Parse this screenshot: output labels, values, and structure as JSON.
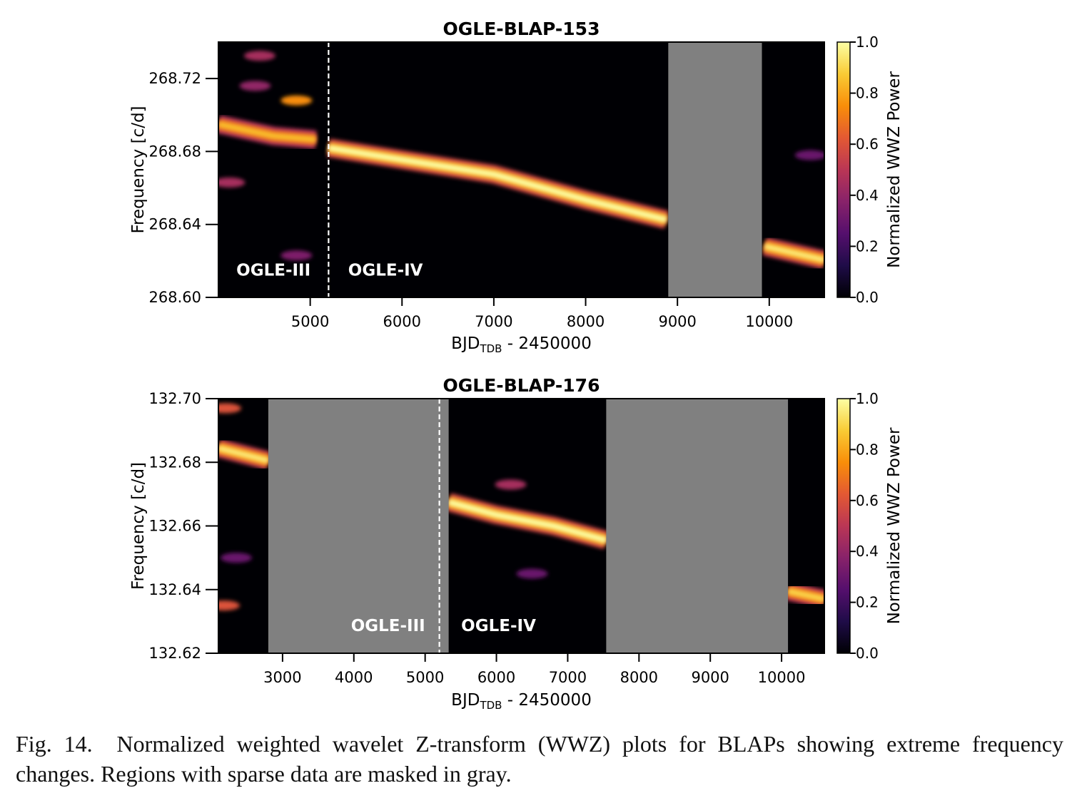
{
  "colors": {
    "gap": "#808080",
    "background": "#ffffff",
    "text": "#000000",
    "marker": "#ffffff"
  },
  "colormap": {
    "name": "inferno",
    "stops": [
      "#000004",
      "#1f0c48",
      "#550f6d",
      "#88226a",
      "#ba3655",
      "#e35933",
      "#f98e09",
      "#f9cb35",
      "#fcffa4"
    ]
  },
  "chart_data": [
    {
      "type": "heatmap",
      "title": "OGLE-BLAP-153",
      "xlabel_main": "BJD",
      "xlabel_sub": "TDB",
      "xlabel_tail": " - 2450000",
      "ylabel": "Frequency [c/d]",
      "xlim": [
        4000,
        10600
      ],
      "ylim": [
        268.6,
        268.74
      ],
      "xticks": [
        5000,
        6000,
        7000,
        8000,
        9000,
        10000
      ],
      "xtick_labels": [
        "5000",
        "6000",
        "7000",
        "8000",
        "9000",
        "10000"
      ],
      "yticks": [
        268.6,
        268.64,
        268.68,
        268.72
      ],
      "ytick_labels": [
        "268.60",
        "268.64",
        "268.68",
        "268.72"
      ],
      "colorbar": {
        "label": "Normalized WWZ Power",
        "range": [
          0.0,
          1.0
        ],
        "ticks": [
          0.0,
          0.2,
          0.4,
          0.6,
          0.8,
          1.0
        ],
        "tick_labels": [
          "0.0",
          "0.2",
          "0.4",
          "0.6",
          "0.8",
          "1.0"
        ]
      },
      "masked_regions": [
        [
          8900,
          9920
        ]
      ],
      "divider_x": 5200,
      "region_labels": [
        {
          "text": "OGLE-III",
          "x": 4600,
          "y": 268.612
        },
        {
          "text": "OGLE-IV",
          "x": 5820,
          "y": 268.612
        }
      ],
      "ridges": [
        {
          "x": [
            4000,
            4600,
            5060
          ],
          "y": [
            268.695,
            268.6885,
            268.6865
          ],
          "power": 0.85
        },
        {
          "x": [
            5200,
            6000,
            7000,
            8000,
            8880
          ],
          "y": [
            268.682,
            268.6755,
            268.6675,
            268.6535,
            268.6425
          ],
          "power": 1.0
        },
        {
          "x": [
            9950,
            10600
          ],
          "y": [
            268.628,
            268.6205
          ],
          "power": 0.95
        }
      ],
      "blobs": [
        {
          "x": 4450,
          "y": 268.7325,
          "power": 0.45
        },
        {
          "x": 4850,
          "y": 268.708,
          "power": 0.75
        },
        {
          "x": 4400,
          "y": 268.716,
          "power": 0.4
        },
        {
          "x": 4120,
          "y": 268.663,
          "power": 0.45
        },
        {
          "x": 4850,
          "y": 268.623,
          "power": 0.35
        },
        {
          "x": 10450,
          "y": 268.678,
          "power": 0.3
        }
      ]
    },
    {
      "type": "heatmap",
      "title": "OGLE-BLAP-176",
      "xlabel_main": "BJD",
      "xlabel_sub": "TDB",
      "xlabel_tail": " - 2450000",
      "ylabel": "Frequency [c/d]",
      "xlim": [
        2100,
        10600
      ],
      "ylim": [
        132.62,
        132.7
      ],
      "xticks": [
        3000,
        4000,
        5000,
        6000,
        7000,
        8000,
        9000,
        10000
      ],
      "xtick_labels": [
        "3000",
        "4000",
        "5000",
        "6000",
        "7000",
        "8000",
        "9000",
        "10000"
      ],
      "yticks": [
        132.62,
        132.64,
        132.66,
        132.68,
        132.7
      ],
      "ytick_labels": [
        "132.62",
        "132.64",
        "132.66",
        "132.68",
        "132.70"
      ],
      "colorbar": {
        "label": "Normalized WWZ Power",
        "range": [
          0.0,
          1.0
        ],
        "ticks": [
          0.0,
          0.2,
          0.4,
          0.6,
          0.8,
          1.0
        ],
        "tick_labels": [
          "0.0",
          "0.2",
          "0.4",
          "0.6",
          "0.8",
          "1.0"
        ]
      },
      "masked_regions": [
        [
          2800,
          5330
        ],
        [
          7540,
          10090
        ]
      ],
      "divider_x": 5200,
      "region_labels": [
        {
          "text": "OGLE-III",
          "x": 4480,
          "y": 132.627
        },
        {
          "text": "OGLE-IV",
          "x": 6030,
          "y": 132.627
        }
      ],
      "ridges": [
        {
          "x": [
            2100,
            2800
          ],
          "y": [
            132.6845,
            132.6805
          ],
          "power": 0.95
        },
        {
          "x": [
            5330,
            6000,
            6800,
            7540
          ],
          "y": [
            132.6675,
            132.6635,
            132.66,
            132.6555
          ],
          "power": 1.0
        },
        {
          "x": [
            10090,
            10600
          ],
          "y": [
            132.6395,
            132.637
          ],
          "power": 0.9
        }
      ],
      "blobs": [
        {
          "x": 2200,
          "y": 132.697,
          "power": 0.6
        },
        {
          "x": 2180,
          "y": 132.635,
          "power": 0.6
        },
        {
          "x": 6200,
          "y": 132.673,
          "power": 0.45
        },
        {
          "x": 6500,
          "y": 132.645,
          "power": 0.3
        },
        {
          "x": 2350,
          "y": 132.65,
          "power": 0.3
        }
      ]
    }
  ],
  "caption": {
    "label": "Fig. 14.",
    "text": "Normalized weighted wavelet Z-transform (WWZ) plots for BLAPs showing extreme frequency changes. Regions with sparse data are masked in gray."
  }
}
